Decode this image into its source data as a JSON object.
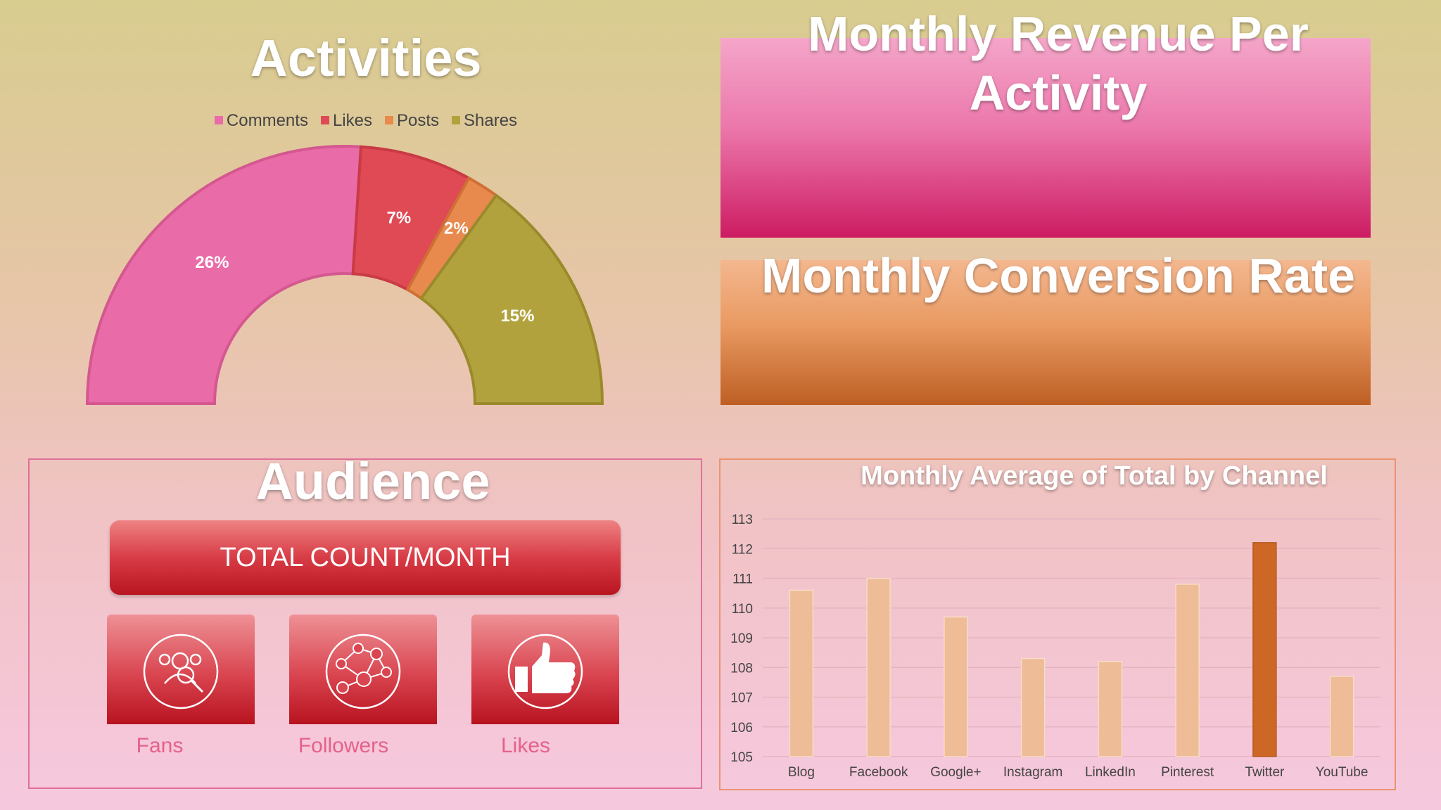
{
  "activities": {
    "title": "Activities",
    "legend": [
      {
        "label": "Comments",
        "color": "#e96ba8"
      },
      {
        "label": "Likes",
        "color": "#e04a55"
      },
      {
        "label": "Posts",
        "color": "#e8894e"
      },
      {
        "label": "Shares",
        "color": "#b2a23e"
      }
    ]
  },
  "revenue": {
    "title": "Monthly Revenue Per Activity"
  },
  "conversion": {
    "title": "Monthly Conversion Rate"
  },
  "audience": {
    "title": "Audience",
    "total_button": "TOTAL COUNT/MONTH",
    "tiles": [
      {
        "label": "Fans",
        "icon": "fans-search-icon"
      },
      {
        "label": "Followers",
        "icon": "network-icon"
      },
      {
        "label": "Likes",
        "icon": "thumbs-up-icon"
      }
    ]
  },
  "chart_data": [
    {
      "type": "pie",
      "variant": "half-donut",
      "title": "Activities",
      "categories": [
        "Comments",
        "Likes",
        "Posts",
        "Shares"
      ],
      "values": [
        26,
        7,
        2,
        15
      ],
      "value_labels": [
        "26%",
        "7%",
        "2%",
        "15%"
      ],
      "colors": [
        "#e96ba8",
        "#e04a55",
        "#e8894e",
        "#b2a23e"
      ],
      "legend": "top"
    },
    {
      "type": "bar",
      "title": "Monthly Average of Total by Channel",
      "categories": [
        "Blog",
        "Facebook",
        "Google+",
        "Instagram",
        "LinkedIn",
        "Pinterest",
        "Twitter",
        "YouTube"
      ],
      "values": [
        110.6,
        111.0,
        109.7,
        108.3,
        108.2,
        110.8,
        112.2,
        107.7
      ],
      "highlight": "Twitter",
      "highlight_color": "#cc6726",
      "bar_color": "#eebc97",
      "ylim": [
        105,
        113
      ],
      "yticks": [
        105,
        106,
        107,
        108,
        109,
        110,
        111,
        112,
        113
      ],
      "grid": true,
      "xlabel": "",
      "ylabel": ""
    }
  ]
}
